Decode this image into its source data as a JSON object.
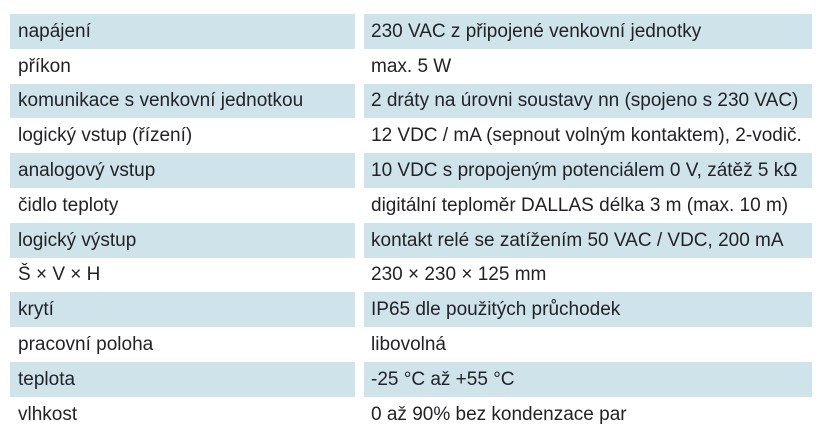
{
  "table": {
    "colors": {
      "row_shaded": "#cfe3eb",
      "row_plain": "#ffffff",
      "text": "#232227"
    },
    "rows": [
      {
        "label": "napájení",
        "value": "230 VAC z připojené venkovní jednotky"
      },
      {
        "label": "příkon",
        "value": "max. 5 W"
      },
      {
        "label": "komunikace s venkovní jednotkou",
        "value": "2 dráty na úrovni soustavy nn (spojeno s 230 VAC)"
      },
      {
        "label": "logický vstup (řízení)",
        "value": "12 VDC / mA (sepnout volným kontaktem), 2-vodič."
      },
      {
        "label": "analogový vstup",
        "value": "10 VDC s propojeným potenciálem 0 V, zátěž 5 kΩ"
      },
      {
        "label": "čidlo teploty",
        "value": "digitální teploměr DALLAS délka 3 m (max. 10 m)"
      },
      {
        "label": "logický výstup",
        "value": "kontakt relé se zatížením 50 VAC / VDC, 200 mA"
      },
      {
        "label": "Š × V × H",
        "value": "230 × 230 × 125 mm"
      },
      {
        "label": "krytí",
        "value": "IP65 dle použitých průchodek"
      },
      {
        "label": "pracovní poloha",
        "value": "libovolná"
      },
      {
        "label": "teplota",
        "value": "-25 °C až +55 °C"
      },
      {
        "label": "vlhkost",
        "value": "0 až 90% bez kondenzace par"
      }
    ]
  }
}
